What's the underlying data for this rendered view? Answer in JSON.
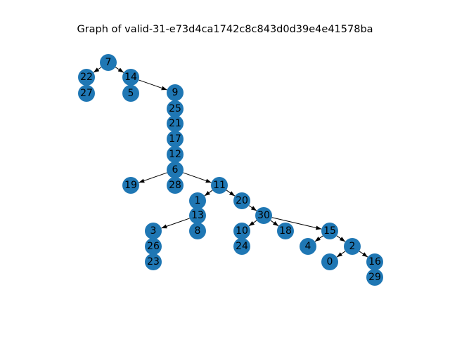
{
  "figure": {
    "title": "Graph of valid-31-e73d4ca1742c8c843d0d39e4e41578ba"
  },
  "graph": {
    "node_color": "#1f77b4",
    "edge_color": "#000000",
    "label_color": "#000000",
    "nodes": [
      "7",
      "22",
      "27",
      "14",
      "5",
      "9",
      "25",
      "21",
      "17",
      "12",
      "6",
      "19",
      "28",
      "11",
      "1",
      "13",
      "3",
      "26",
      "23",
      "8",
      "20",
      "30",
      "10",
      "24",
      "18",
      "15",
      "4",
      "2",
      "0",
      "16",
      "29"
    ],
    "edges": [
      [
        "7",
        "22"
      ],
      [
        "7",
        "14"
      ],
      [
        "14",
        "9"
      ],
      [
        "6",
        "19"
      ],
      [
        "6",
        "11"
      ],
      [
        "11",
        "1"
      ],
      [
        "11",
        "20"
      ],
      [
        "13",
        "3"
      ],
      [
        "20",
        "30"
      ],
      [
        "30",
        "10"
      ],
      [
        "30",
        "18"
      ],
      [
        "30",
        "15"
      ],
      [
        "15",
        "4"
      ],
      [
        "15",
        "2"
      ],
      [
        "2",
        "0"
      ],
      [
        "2",
        "16"
      ]
    ]
  }
}
